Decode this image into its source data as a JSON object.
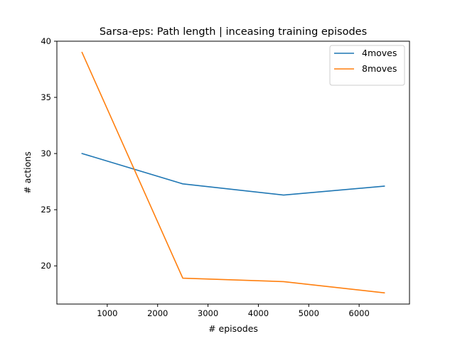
{
  "chart_data": {
    "type": "line",
    "title": "Sarsa-eps: Path length | inceasing training episodes",
    "xlabel": "# episodes",
    "ylabel": "# actions",
    "x": [
      500,
      2500,
      4500,
      6500
    ],
    "xlim": [
      0,
      7000
    ],
    "ylim": [
      16.6,
      40
    ],
    "xticks": [
      1000,
      2000,
      3000,
      4000,
      5000,
      6000
    ],
    "xtick_labels": [
      "1000",
      "2000",
      "3000",
      "4000",
      "5000",
      "6000"
    ],
    "yticks": [
      20,
      25,
      30,
      35,
      40
    ],
    "ytick_labels": [
      "20",
      "25",
      "30",
      "35",
      "40"
    ],
    "grid": false,
    "legend_position": "top-right",
    "series": [
      {
        "name": "4moves",
        "color": "#1f77b4",
        "values": [
          30.0,
          27.3,
          26.3,
          27.1
        ]
      },
      {
        "name": "8moves",
        "color": "#ff7f0e",
        "values": [
          39.0,
          18.9,
          18.6,
          17.6
        ]
      }
    ]
  }
}
